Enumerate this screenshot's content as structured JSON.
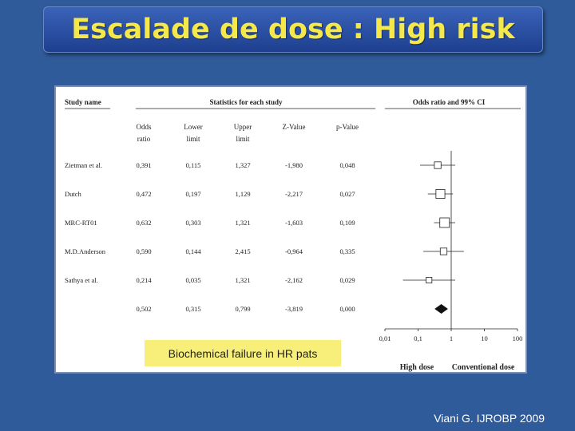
{
  "slide": {
    "title": "Escalade de dose : High risk",
    "caption": "Biochemical failure in HR pats",
    "citation": "Viani G. IJROBP 2009"
  },
  "chart_data": {
    "type": "forest",
    "header": {
      "study_name": "Study name",
      "stats_group": "Statistics for each study",
      "ci_group": "Odds ratio and 99% CI"
    },
    "columns": [
      {
        "key": "or",
        "label1": "Odds",
        "label2": "ratio"
      },
      {
        "key": "lower",
        "label1": "Lower",
        "label2": "limit"
      },
      {
        "key": "upper",
        "label1": "Upper",
        "label2": "limit"
      },
      {
        "key": "z",
        "label1": "Z-Value",
        "label2": ""
      },
      {
        "key": "p",
        "label1": "p-Value",
        "label2": ""
      }
    ],
    "rows": [
      {
        "study": "Zietman et al.",
        "or": "0,391",
        "lower": "0,115",
        "upper": "1,327",
        "z": "-1,980",
        "p": "0,048",
        "or_val": 0.391,
        "lo_val": 0.115,
        "hi_val": 1.327,
        "weight": 0.55
      },
      {
        "study": "Dutch",
        "or": "0,472",
        "lower": "0,197",
        "upper": "1,129",
        "z": "-2,217",
        "p": "0,027",
        "or_val": 0.472,
        "lo_val": 0.197,
        "hi_val": 1.129,
        "weight": 0.9
      },
      {
        "study": "MRC-RT01",
        "or": "0,632",
        "lower": "0,303",
        "upper": "1,321",
        "z": "-1,603",
        "p": "0,109",
        "or_val": 0.632,
        "lo_val": 0.303,
        "hi_val": 1.321,
        "weight": 1.0
      },
      {
        "study": "M.D.Anderson",
        "or": "0,590",
        "lower": "0,144",
        "upper": "2,415",
        "z": "-0,964",
        "p": "0,335",
        "or_val": 0.59,
        "lo_val": 0.144,
        "hi_val": 2.415,
        "weight": 0.55
      },
      {
        "study": "Sathya et al.",
        "or": "0,214",
        "lower": "0,035",
        "upper": "1,321",
        "z": "-2,162",
        "p": "0,029",
        "or_val": 0.214,
        "lo_val": 0.035,
        "hi_val": 1.321,
        "weight": 0.4
      },
      {
        "study": "",
        "or": "0,502",
        "lower": "0,315",
        "upper": "0,799",
        "z": "-3,819",
        "p": "0,000",
        "or_val": 0.502,
        "lo_val": 0.315,
        "hi_val": 0.799,
        "summary": true
      }
    ],
    "x_scale": "log",
    "xlim": [
      0.01,
      100
    ],
    "x_ticks": [
      {
        "value": 0.01,
        "label": "0,01"
      },
      {
        "value": 0.1,
        "label": "0,1"
      },
      {
        "value": 1,
        "label": "1"
      },
      {
        "value": 10,
        "label": "10"
      },
      {
        "value": 100,
        "label": "100"
      }
    ],
    "favours_left": "High dose",
    "favours_right": "Conventional dose"
  }
}
